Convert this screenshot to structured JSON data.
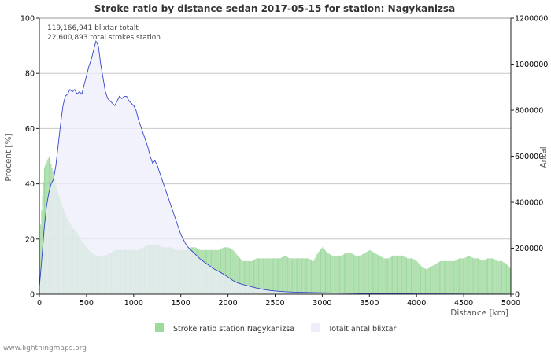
{
  "chart_data": {
    "type": "bar+line",
    "title": "Stroke ratio by distance sedan 2017-05-15 for station: Nagykanizsa",
    "xlabel": "Distance   [km]",
    "ylabel_left": "Procent   [%]",
    "ylabel_right": "Antal",
    "xlim": [
      0,
      5000
    ],
    "ylim_left": [
      0,
      100
    ],
    "ylim_right": [
      0,
      1200000
    ],
    "x_ticks": [
      0,
      500,
      1000,
      1500,
      2000,
      2500,
      3000,
      3500,
      4000,
      4500,
      5000
    ],
    "y_left_ticks": [
      0,
      20,
      40,
      60,
      80,
      100
    ],
    "y_right_ticks": [
      {
        "value": 0,
        "label": "0"
      },
      {
        "value": 200000,
        "label": "200000"
      },
      {
        "value": 400000,
        "label": "400000"
      },
      {
        "value": 600000,
        "label": "600000"
      },
      {
        "value": 800000,
        "label": "800000"
      },
      {
        "value": 1000000,
        "label": "1000000"
      },
      {
        "value": 1200000,
        "label": "1200000"
      }
    ],
    "annotations": [
      "119,166,941 blixtar totalt",
      "22,600,893 total strokes station"
    ],
    "legend": [
      "Stroke ratio station Nagykanizsa",
      "Totalt antal blixtar"
    ],
    "series": [
      {
        "name": "Stroke ratio station Nagykanizsa",
        "axis": "left",
        "kind": "bars",
        "color": "#9ed99e",
        "x": [
          0,
          50,
          100,
          150,
          200,
          250,
          300,
          350,
          400,
          450,
          500,
          550,
          600,
          650,
          700,
          750,
          800,
          850,
          900,
          950,
          1000,
          1050,
          1100,
          1150,
          1200,
          1250,
          1300,
          1350,
          1400,
          1450,
          1500,
          1550,
          1600,
          1650,
          1700,
          1750,
          1800,
          1850,
          1900,
          1950,
          2000,
          2050,
          2100,
          2150,
          2200,
          2250,
          2300,
          2350,
          2400,
          2450,
          2500,
          2550,
          2600,
          2650,
          2700,
          2750,
          2800,
          2850,
          2900,
          2950,
          3000,
          3050,
          3100,
          3150,
          3200,
          3250,
          3300,
          3350,
          3400,
          3450,
          3500,
          3550,
          3600,
          3650,
          3700,
          3750,
          3800,
          3850,
          3900,
          3950,
          4000,
          4050,
          4100,
          4150,
          4200,
          4250,
          4300,
          4350,
          4400,
          4450,
          4500,
          4550,
          4600,
          4650,
          4700,
          4750,
          4800,
          4850,
          4900,
          4950,
          5000
        ],
        "values": [
          20,
          46,
          50,
          43,
          36,
          31,
          27,
          24,
          22,
          19,
          17,
          15,
          14,
          14,
          14,
          15,
          16,
          16,
          16,
          16,
          16,
          16,
          17,
          18,
          18,
          18,
          17,
          17,
          17,
          16,
          16,
          16,
          17,
          17,
          16,
          16,
          16,
          16,
          16,
          17,
          17,
          16,
          14,
          12,
          12,
          12,
          13,
          13,
          13,
          13,
          13,
          13,
          14,
          13,
          13,
          13,
          13,
          13,
          12,
          15,
          17,
          15,
          14,
          14,
          14,
          15,
          15,
          14,
          14,
          15,
          16,
          15,
          14,
          13,
          13,
          14,
          14,
          14,
          13,
          13,
          12,
          10,
          9,
          10,
          11,
          12,
          12,
          12,
          12,
          13,
          13,
          14,
          13,
          13,
          12,
          13,
          13,
          12,
          12,
          11,
          9
        ]
      },
      {
        "name": "Totalt antal blixtar",
        "axis": "right",
        "kind": "area",
        "color": "#3344cc",
        "fill": "#eeeefb",
        "x": [
          0,
          25,
          50,
          75,
          100,
          125,
          150,
          175,
          200,
          225,
          250,
          275,
          300,
          325,
          350,
          375,
          400,
          425,
          450,
          475,
          500,
          525,
          550,
          575,
          600,
          625,
          650,
          675,
          700,
          725,
          750,
          775,
          800,
          825,
          850,
          875,
          900,
          925,
          950,
          975,
          1000,
          1025,
          1050,
          1075,
          1100,
          1125,
          1150,
          1175,
          1200,
          1225,
          1250,
          1275,
          1300,
          1325,
          1350,
          1375,
          1400,
          1425,
          1450,
          1475,
          1500,
          1525,
          1550,
          1575,
          1600,
          1625,
          1650,
          1675,
          1700,
          1750,
          1800,
          1850,
          1900,
          1950,
          2000,
          2050,
          2100,
          2150,
          2200,
          2250,
          2300,
          2350,
          2400,
          2450,
          2500,
          2600,
          2700,
          2800,
          2900,
          3000,
          3100,
          3200,
          3300,
          3400,
          3500,
          3600,
          3700,
          3800,
          3900,
          4000,
          4200,
          4400,
          4600,
          4800,
          5000
        ],
        "values": [
          30000,
          150000,
          280000,
          380000,
          440000,
          480000,
          500000,
          560000,
          650000,
          740000,
          820000,
          860000,
          870000,
          890000,
          880000,
          890000,
          870000,
          880000,
          870000,
          910000,
          950000,
          990000,
          1020000,
          1060000,
          1100000,
          1080000,
          1000000,
          940000,
          880000,
          850000,
          840000,
          830000,
          820000,
          840000,
          860000,
          850000,
          860000,
          860000,
          840000,
          830000,
          820000,
          800000,
          760000,
          730000,
          700000,
          670000,
          640000,
          600000,
          570000,
          580000,
          560000,
          530000,
          500000,
          470000,
          440000,
          410000,
          380000,
          350000,
          320000,
          290000,
          260000,
          240000,
          220000,
          205000,
          195000,
          185000,
          175000,
          165000,
          155000,
          140000,
          125000,
          110000,
          100000,
          88000,
          75000,
          60000,
          50000,
          43000,
          38000,
          32000,
          27000,
          23000,
          19000,
          16000,
          14000,
          11000,
          9000,
          8000,
          7000,
          6000,
          5000,
          4500,
          4000,
          3500,
          3000,
          2500,
          2200,
          2000,
          1700,
          1500,
          1200,
          1000,
          800,
          600,
          500
        ]
      }
    ]
  },
  "footer": "www.lightningmaps.org"
}
